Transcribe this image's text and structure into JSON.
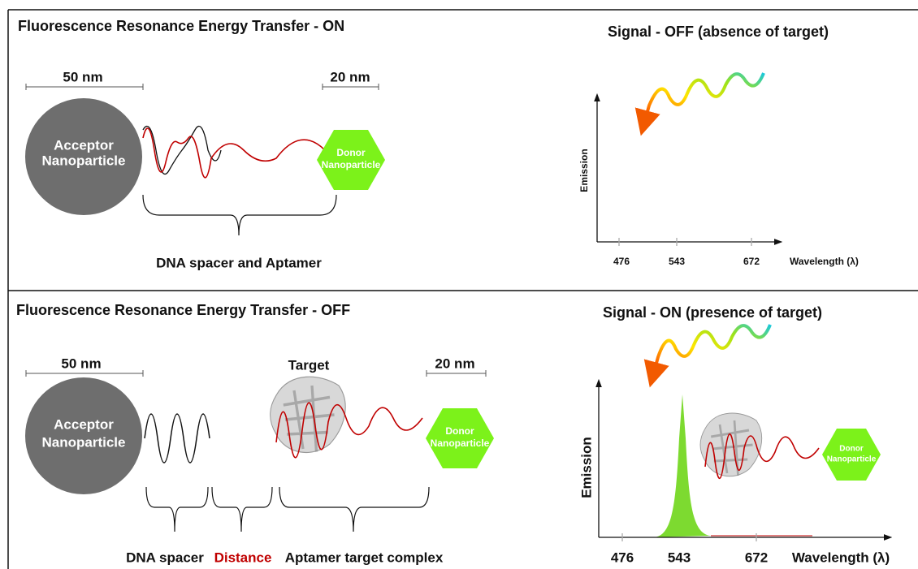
{
  "top": {
    "title": "Fluorescence Resonance Energy Transfer - ON",
    "acceptor_size": "50 nm",
    "donor_size": "20 nm",
    "acceptor_label": [
      "Acceptor",
      "Nanoparticle"
    ],
    "donor_label": [
      "Donor",
      "Nanoparticle"
    ],
    "brace_label": "DNA spacer and Aptamer",
    "signal": {
      "title": "Signal - OFF (absence of target)",
      "y_label": "Emission",
      "x_label": "Wavelength (λ)",
      "x_ticks": [
        "476",
        "543",
        "672"
      ]
    }
  },
  "bottom": {
    "title": "Fluorescence Resonance Energy Transfer - OFF",
    "acceptor_size": "50 nm",
    "donor_size": "20 nm",
    "target_label": "Target",
    "acceptor_label": [
      "Acceptor",
      "Nanoparticle"
    ],
    "donor_label": [
      "Donor",
      "Nanoparticle"
    ],
    "brace_labels": [
      "DNA spacer",
      "Distance",
      "Aptamer target complex"
    ],
    "signal": {
      "title": "Signal - ON (presence of target)",
      "y_label": "Emission",
      "x_label": "Wavelength (λ)",
      "x_ticks": [
        "476",
        "543",
        "672"
      ],
      "inset_donor_label": [
        "Donor",
        "Nanoparticle"
      ]
    }
  }
}
